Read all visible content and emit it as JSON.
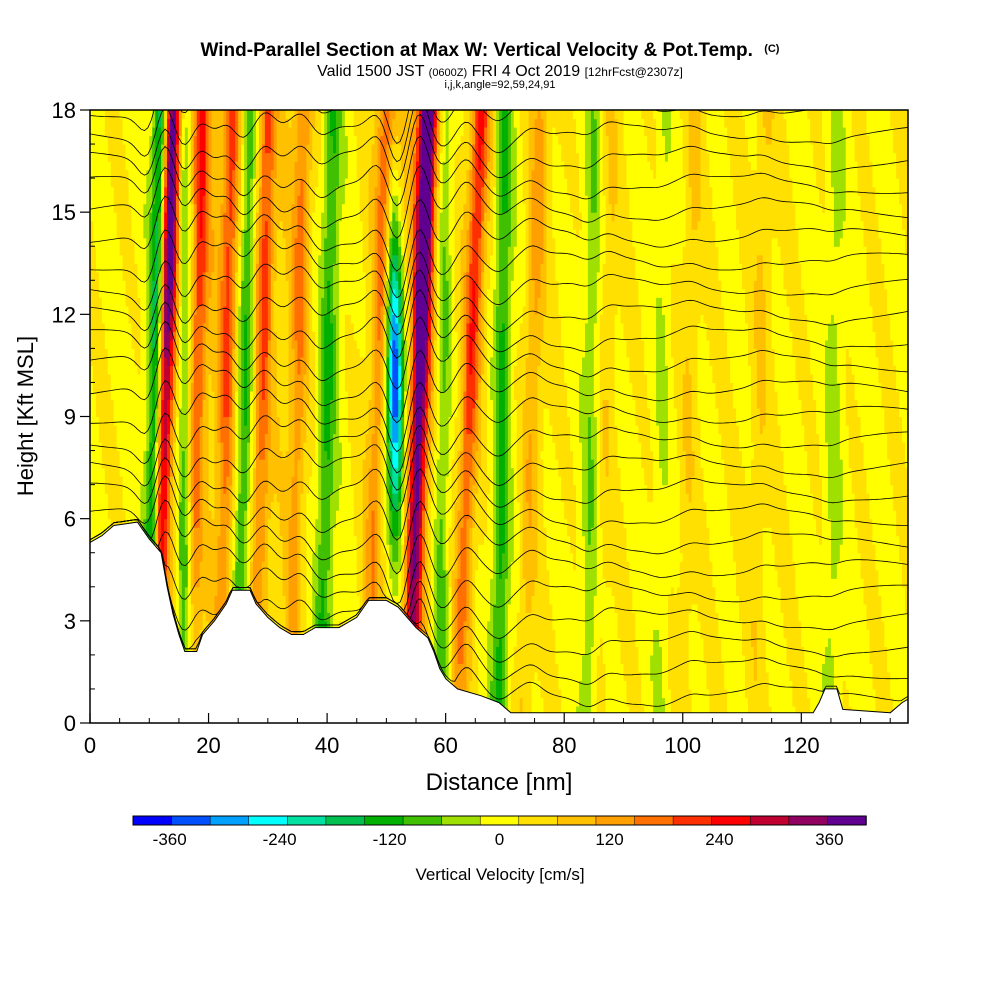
{
  "chart_data": {
    "type": "heatmap",
    "title": "Wind-Parallel Section at Max W: Vertical Velocity & Pot.Temp.",
    "title_suffix": "(C)",
    "subtitle_parts": [
      "Valid 1500 JST",
      "(0600Z)",
      "FRI 4 Oct 2019",
      "[12hrFcst@2307z]"
    ],
    "subtitle2": "i,j,k,angle=92,59,24,91",
    "xlabel": "Distance [nm]",
    "ylabel": "Height [Kft MSL]",
    "xlim": [
      0,
      138
    ],
    "ylim": [
      0,
      18
    ],
    "x_ticks": [
      0,
      20,
      40,
      60,
      80,
      100,
      120
    ],
    "y_ticks": [
      0,
      3,
      6,
      9,
      12,
      15,
      18
    ],
    "grid": false,
    "colorbar": {
      "label": "Vertical Velocity [cm/s]",
      "ticks": [
        -360,
        -240,
        -120,
        0,
        120,
        240,
        360
      ],
      "vmin": -400,
      "vmax": 400,
      "colors": [
        "#0000ff",
        "#0050ff",
        "#00a0ff",
        "#00ffff",
        "#00e0a0",
        "#00c050",
        "#00b000",
        "#40c000",
        "#a0e000",
        "#ffff00",
        "#ffe000",
        "#ffc000",
        "#ffa000",
        "#ff7000",
        "#ff3000",
        "#ff0000",
        "#c00030",
        "#900060",
        "#600090"
      ]
    },
    "updraft_bands": [
      {
        "x_base": 11,
        "x_top": 14,
        "w": 350
      },
      {
        "x_base": 17,
        "x_top": 19,
        "w": 160
      },
      {
        "x_base": 22,
        "x_top": 24,
        "w": 150
      },
      {
        "x_base": 28,
        "x_top": 30,
        "w": 150
      },
      {
        "x_base": 34,
        "x_top": 36,
        "w": 110
      },
      {
        "x_base": 47,
        "x_top": 50,
        "w": 140
      },
      {
        "x_base": 54,
        "x_top": 57,
        "w": 370
      },
      {
        "x_base": 62,
        "x_top": 66,
        "w": 170
      },
      {
        "x_base": 73,
        "x_top": 76,
        "w": 80
      },
      {
        "x_base": 86,
        "x_top": 88,
        "w": 40
      },
      {
        "x_base": 100,
        "x_top": 102,
        "w": 40
      },
      {
        "x_base": 112,
        "x_top": 114,
        "w": 40
      }
    ],
    "downdraft_bands": [
      {
        "x_base": 10,
        "x_top": 12,
        "w": -220
      },
      {
        "x_base": 16,
        "x_top": 16,
        "w": -120
      },
      {
        "x_base": 25,
        "x_top": 27,
        "w": -120
      },
      {
        "x_base": 39,
        "x_top": 41,
        "w": -100
      },
      {
        "x_base": 52,
        "x_top": 51,
        "w": -330
      },
      {
        "x_base": 59,
        "x_top": 60,
        "w": -90
      },
      {
        "x_base": 69,
        "x_top": 70,
        "w": -110
      },
      {
        "x_base": 84,
        "x_top": 85,
        "w": -60
      },
      {
        "x_base": 96,
        "x_top": 97,
        "w": -30
      },
      {
        "x_base": 125,
        "x_top": 126,
        "w": -40
      }
    ],
    "terrain": [
      [
        0,
        5.3
      ],
      [
        2,
        5.5
      ],
      [
        4,
        5.8
      ],
      [
        8,
        5.9
      ],
      [
        10,
        5.4
      ],
      [
        12,
        5.0
      ],
      [
        13,
        4.0
      ],
      [
        14,
        3.2
      ],
      [
        15,
        2.6
      ],
      [
        16,
        2.1
      ],
      [
        18,
        2.1
      ],
      [
        19,
        2.6
      ],
      [
        21,
        3.0
      ],
      [
        23,
        3.5
      ],
      [
        24,
        3.9
      ],
      [
        27,
        3.9
      ],
      [
        28,
        3.5
      ],
      [
        30,
        3.1
      ],
      [
        32,
        2.8
      ],
      [
        34,
        2.6
      ],
      [
        36,
        2.6
      ],
      [
        38,
        2.8
      ],
      [
        42,
        2.8
      ],
      [
        45,
        3.1
      ],
      [
        47,
        3.6
      ],
      [
        50,
        3.6
      ],
      [
        52,
        3.4
      ],
      [
        54,
        3.0
      ],
      [
        55,
        2.8
      ],
      [
        57,
        2.5
      ],
      [
        58,
        2.1
      ],
      [
        59,
        1.6
      ],
      [
        60,
        1.3
      ],
      [
        62,
        1.0
      ],
      [
        66,
        0.8
      ],
      [
        69,
        0.6
      ],
      [
        71,
        0.3
      ],
      [
        85,
        0.3
      ],
      [
        88,
        0.3
      ],
      [
        122,
        0.3
      ],
      [
        123,
        0.6
      ],
      [
        124,
        1.0
      ],
      [
        126,
        1.0
      ],
      [
        127,
        0.4
      ],
      [
        135,
        0.3
      ],
      [
        137,
        0.6
      ],
      [
        138,
        0.7
      ]
    ]
  }
}
